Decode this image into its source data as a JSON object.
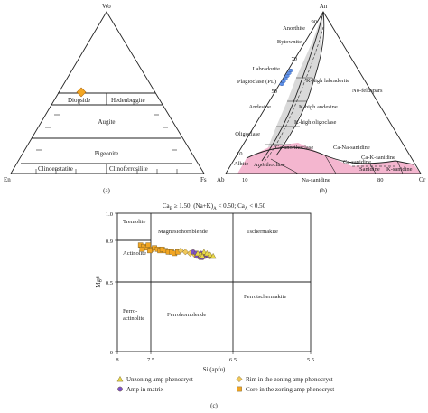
{
  "panel_a": {
    "apex_top": "Wo",
    "apex_left": "En",
    "apex_right": "Fs",
    "fields": {
      "diopside": "Diopside",
      "hedenbergite": "Hedenbergite",
      "augite": "Augite",
      "pigeonite": "Pigeonite",
      "clinoenstatite": "Clinoenstatite",
      "clinoferrosilite": "Clinoferrosilite"
    },
    "caption": "(a)"
  },
  "panel_b": {
    "apex_top": "An",
    "apex_left": "Ab",
    "apex_right": "Or",
    "fields": {
      "anorthite": "Anorthite",
      "bytownite": "Bytownite",
      "labradorite": "Labradorite",
      "plagioclase": "Plagioclase (PL)",
      "andesine": "Andesine",
      "oligoclase": "Oligoclase",
      "albite": "Albite",
      "k_high_labradorite": "K-high labradorite",
      "no_feldspars": "No-feldspars",
      "k_high_andesine": "K-high andesine",
      "k_high_oligoclase": "K-high oligoclase",
      "ca_anorthoclase": "Ca-anorthoclase",
      "ca_na_sanidine": "Ca-Na-sanidine",
      "ca_k_sanidine": "Ca-K-sanidine",
      "anorthoclase": "Anorthoclase",
      "ca_sanidine": "Ca-sanidine",
      "sanidine": "Sanidine",
      "k_sanidine": "K-sanidine",
      "na_sanidine": "Na-sanidine"
    },
    "ticks": {
      "t90": "90",
      "t70": "70",
      "t50": "50",
      "t10": "10",
      "b10": "10",
      "b80": "80"
    },
    "caption": "(b)"
  },
  "panel_c": {
    "title_prefix": "Ca",
    "title_sub1": "B",
    "title_mid1": " ≥ 1.50; (Na+K)",
    "title_sub2": "A",
    "title_mid2": " < 0.50; Ca",
    "title_sub3": "A",
    "title_end": " < 0.50",
    "fields": {
      "tremolite": "Tremolite",
      "actinolite": "Actinolite",
      "magnesiohornblende": "Magnesiohornblende",
      "tschermakite": "Tschermakite",
      "ferro1": "Ferro-",
      "ferro2": "actinolite",
      "ferrohornblende": "Ferrohornblende",
      "ferrotschermakite": "Ferrotschermakite"
    },
    "caption": "(c)"
  },
  "chart_data": {
    "type": "scatter",
    "xlabel": "Si (apfu)",
    "ylabel": "Mg#",
    "xlim": [
      8,
      5.5
    ],
    "ylim": [
      0,
      1
    ],
    "x_ticks": [
      "8",
      "7.5",
      "6.5",
      "5.5"
    ],
    "y_ticks": [
      "0",
      "0.5",
      "0.9",
      "1.0"
    ],
    "series": [
      {
        "name": "Unzoning amp phenocryst",
        "marker": "triangle",
        "color": "#e8d84a",
        "points": [
          [
            6.96,
            0.71
          ],
          [
            6.92,
            0.7
          ],
          [
            6.88,
            0.72
          ],
          [
            6.84,
            0.71
          ],
          [
            6.8,
            0.7
          ],
          [
            6.76,
            0.69
          ],
          [
            6.9,
            0.69
          ]
        ]
      },
      {
        "name": "Amp in matrix",
        "marker": "circle",
        "color": "#7b52c9",
        "points": [
          [
            7.02,
            0.72
          ],
          [
            6.98,
            0.71
          ],
          [
            6.95,
            0.7
          ],
          [
            6.92,
            0.71
          ],
          [
            6.89,
            0.7
          ],
          [
            6.86,
            0.69
          ],
          [
            6.84,
            0.7
          ],
          [
            6.82,
            0.69
          ],
          [
            6.97,
            0.69
          ],
          [
            6.93,
            0.68
          ],
          [
            6.9,
            0.68
          ]
        ]
      },
      {
        "name": "Rim in the zoning amp phenocryst",
        "marker": "diamond",
        "color": "#f0c85a",
        "points": [
          [
            7.18,
            0.73
          ],
          [
            7.12,
            0.72
          ],
          [
            7.06,
            0.71
          ],
          [
            7.0,
            0.7
          ],
          [
            6.95,
            0.69
          ],
          [
            6.9,
            0.69
          ],
          [
            6.8,
            0.69
          ]
        ]
      },
      {
        "name": "Core in the zoning amp phenocryst",
        "marker": "square",
        "color": "#f2a623",
        "points": [
          [
            7.7,
            0.77
          ],
          [
            7.66,
            0.76
          ],
          [
            7.62,
            0.75
          ],
          [
            7.6,
            0.77
          ],
          [
            7.56,
            0.74
          ],
          [
            7.52,
            0.75
          ],
          [
            7.48,
            0.74
          ],
          [
            7.45,
            0.73
          ],
          [
            7.42,
            0.74
          ],
          [
            7.38,
            0.73
          ],
          [
            7.34,
            0.72
          ],
          [
            7.3,
            0.72
          ],
          [
            7.26,
            0.71
          ],
          [
            7.22,
            0.72
          ],
          [
            7.68,
            0.74
          ],
          [
            7.58,
            0.73
          ]
        ]
      }
    ]
  }
}
